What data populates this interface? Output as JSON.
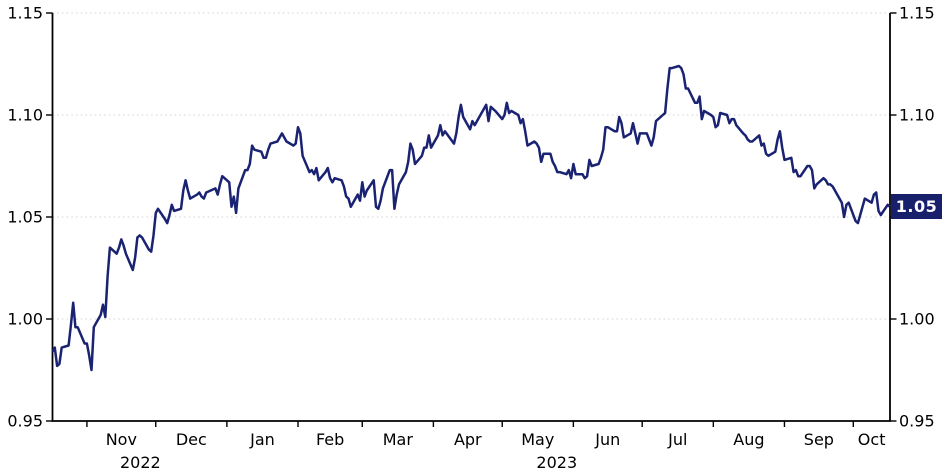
{
  "chart": {
    "colors": {
      "line": "#1a2272",
      "grid": "#d9d9d9",
      "axis": "#000000",
      "text": "#000000",
      "background": "#ffffff"
    },
    "badge": {
      "label": "1.05",
      "bg": "#19206b",
      "fg": "#ffffff"
    }
  },
  "chart_data": {
    "type": "line",
    "title": "",
    "xlabel": "",
    "ylabel": "",
    "grid": "dotted-horizontal",
    "legend": "none",
    "y_axis": {
      "min": 0.95,
      "max": 1.15,
      "ticks": [
        0.95,
        1.0,
        1.05,
        1.1,
        1.15
      ],
      "tick_decimals": 2,
      "sides": [
        "left",
        "right"
      ]
    },
    "x_axis": {
      "frequency": "business-daily",
      "start_date": "2022-10-17",
      "end_date": "2023-10-17",
      "skip_dates": [
        "2022-12-26",
        "2023-04-07"
      ],
      "month_labels": [
        "Nov",
        "Dec",
        "Jan",
        "Feb",
        "Mar",
        "Apr",
        "May",
        "Jun",
        "Jul",
        "Aug",
        "Sep",
        "Oct"
      ],
      "year_labels": [
        {
          "text": "2022",
          "under_month": "Nov"
        },
        {
          "text": "2023",
          "under_month": "May"
        }
      ]
    },
    "last_value_label": "1.05",
    "values": [
      0.984,
      0.986,
      0.977,
      0.978,
      0.986,
      0.987,
      0.997,
      1.008,
      0.996,
      0.996,
      0.988,
      0.988,
      0.982,
      0.975,
      0.996,
      1.002,
      1.007,
      1.001,
      1.021,
      1.035,
      1.032,
      1.035,
      1.039,
      1.036,
      1.032,
      1.024,
      1.03,
      1.04,
      1.041,
      1.04,
      1.034,
      1.033,
      1.041,
      1.052,
      1.054,
      1.049,
      1.047,
      1.051,
      1.056,
      1.053,
      1.054,
      1.063,
      1.068,
      1.063,
      1.059,
      1.061,
      1.062,
      1.06,
      1.059,
      1.062,
      1.064,
      1.061,
      1.066,
      1.07,
      1.067,
      1.055,
      1.06,
      1.052,
      1.064,
      1.073,
      1.073,
      1.076,
      1.085,
      1.083,
      1.082,
      1.079,
      1.079,
      1.083,
      1.086,
      1.087,
      1.089,
      1.091,
      1.089,
      1.087,
      1.085,
      1.086,
      1.094,
      1.091,
      1.08,
      1.072,
      1.073,
      1.071,
      1.074,
      1.068,
      1.072,
      1.074,
      1.069,
      1.067,
      1.069,
      1.068,
      1.065,
      1.06,
      1.059,
      1.055,
      1.061,
      1.058,
      1.067,
      1.06,
      1.063,
      1.068,
      1.055,
      1.054,
      1.058,
      1.064,
      1.073,
      1.073,
      1.054,
      1.061,
      1.066,
      1.072,
      1.077,
      1.086,
      1.083,
      1.076,
      1.08,
      1.084,
      1.084,
      1.09,
      1.084,
      1.09,
      1.095,
      1.09,
      1.092,
      1.086,
      1.091,
      1.099,
      1.105,
      1.099,
      1.093,
      1.097,
      1.095,
      1.097,
      1.099,
      1.105,
      1.097,
      1.104,
      1.103,
      1.102,
      1.098,
      1.1,
      1.106,
      1.101,
      1.102,
      1.1,
      1.096,
      1.098,
      1.092,
      1.085,
      1.087,
      1.086,
      1.084,
      1.077,
      1.081,
      1.081,
      1.077,
      1.075,
      1.072,
      1.072,
      1.071,
      1.073,
      1.069,
      1.076,
      1.071,
      1.071,
      1.069,
      1.07,
      1.078,
      1.075,
      1.076,
      1.079,
      1.083,
      1.094,
      1.094,
      1.092,
      1.092,
      1.099,
      1.096,
      1.089,
      1.091,
      1.096,
      1.091,
      1.086,
      1.091,
      1.091,
      1.088,
      1.085,
      1.089,
      1.097,
      1.1,
      1.101,
      1.113,
      1.123,
      1.123,
      1.124,
      1.123,
      1.12,
      1.113,
      1.113,
      1.106,
      1.106,
      1.109,
      1.098,
      1.102,
      1.1,
      1.099,
      1.094,
      1.095,
      1.101,
      1.1,
      1.096,
      1.098,
      1.098,
      1.095,
      1.091,
      1.09,
      1.088,
      1.087,
      1.087,
      1.09,
      1.085,
      1.086,
      1.081,
      1.08,
      1.082,
      1.088,
      1.092,
      1.084,
      1.078,
      1.079,
      1.072,
      1.073,
      1.07,
      1.07,
      1.075,
      1.075,
      1.073,
      1.064,
      1.066,
      1.069,
      1.068,
      1.066,
      1.066,
      1.065,
      1.059,
      1.057,
      1.05,
      1.056,
      1.057,
      1.048,
      1.047,
      1.051,
      1.055,
      1.059,
      1.057,
      1.061,
      1.062,
      1.053,
      1.051,
      1.056,
      1.055
    ]
  }
}
